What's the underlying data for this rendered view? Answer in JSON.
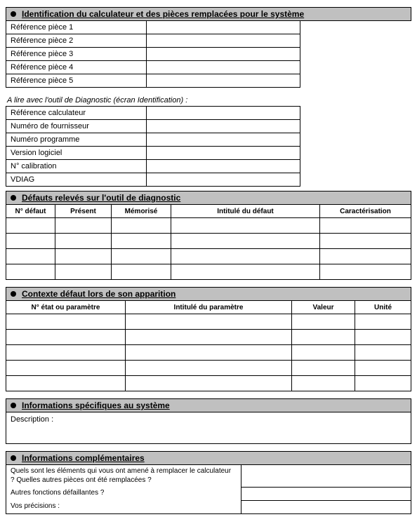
{
  "colors": {
    "header_bg": "#c0c0c0",
    "border": "#000000",
    "text": "#000000",
    "page_bg": "#ffffff"
  },
  "sections": {
    "identification": {
      "title": "Identification du calculateur et des pièces remplacées pour le système",
      "pieces_rows": [
        "Référence pièce 1",
        "Référence pièce 2",
        "Référence pièce 3",
        "Référence pièce 4",
        "Référence pièce 5"
      ],
      "note": "A lire avec l'outil de Diagnostic (écran Identification) :",
      "ident_rows": [
        "Référence calculateur",
        "Numéro de fournisseur",
        "Numéro programme",
        "Version logiciel",
        "N° calibration",
        "VDIAG"
      ]
    },
    "defauts": {
      "title": "Défauts relevés sur l'outil de diagnostic",
      "columns": [
        "N° défaut",
        "Présent",
        "Mémorisé",
        "Intitulé du défaut",
        "Caractérisation"
      ],
      "blank_rows": 4
    },
    "contexte": {
      "title": "Contexte défaut lors de son apparition",
      "columns": [
        "N° état ou paramètre",
        "Intitulé du paramètre",
        "Valeur",
        "Unité"
      ],
      "blank_rows": 5
    },
    "specifiques": {
      "title": "Informations spécifiques au système",
      "description_label": "Description :"
    },
    "complementaires": {
      "title": "Informations complémentaires",
      "rows": [
        "Quels sont les éléments qui vous ont amené à remplacer le calculateur ? Quelles autres pièces ont été remplacées ?",
        "Autres fonctions défaillantes ?",
        "Vos précisions :"
      ]
    }
  }
}
